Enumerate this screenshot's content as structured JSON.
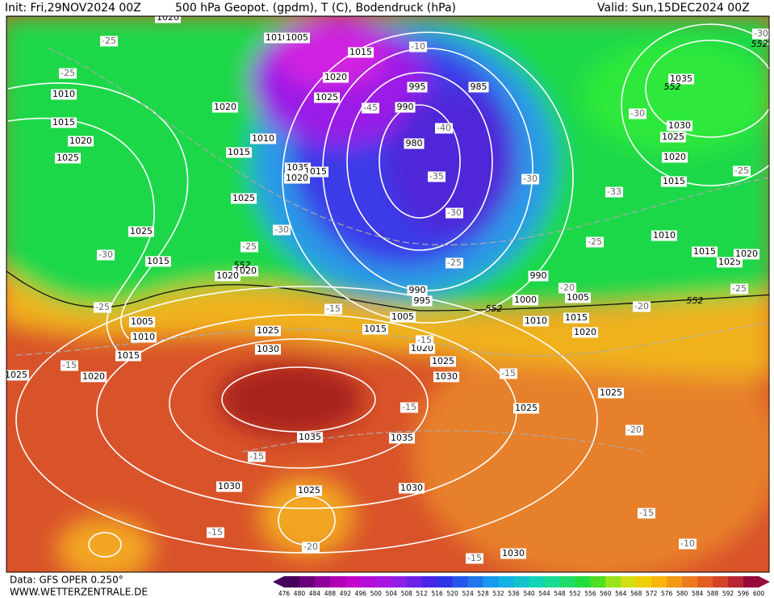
{
  "header": {
    "init": "Init: Fri,29NOV2024 00Z",
    "title": "500 hPa Geopot. (gpdm), T (C), Bodendruck (hPa)",
    "valid": "Valid: Sun,15DEC2024 00Z"
  },
  "footer": {
    "source": "Data: GFS OPER 0.250°",
    "site": "WWW.WETTERZENTRALE.DE"
  },
  "colorbar": {
    "labels": [
      "476",
      "480",
      "484",
      "488",
      "492",
      "496",
      "500",
      "504",
      "508",
      "512",
      "516",
      "520",
      "524",
      "528",
      "532",
      "536",
      "540",
      "544",
      "548",
      "552",
      "556",
      "560",
      "564",
      "568",
      "572",
      "576",
      "580",
      "584",
      "588",
      "592",
      "596",
      "600"
    ]
  },
  "map": {
    "pressure_labels": [
      "1020",
      "1010",
      "1005",
      "1015",
      "1020",
      "995",
      "985",
      "1025",
      "990",
      "1010",
      "1015",
      "1020",
      "1025",
      "1020",
      "1010",
      "980",
      "1015",
      "1035",
      "1015",
      "1020",
      "1025",
      "1025",
      "1015",
      "1020",
      "1020",
      "990",
      "995",
      "990",
      "1000",
      "1005",
      "1005",
      "1010",
      "1015",
      "1015",
      "1025",
      "1020",
      "1005",
      "1010",
      "1030",
      "1015",
      "1020",
      "1025",
      "1030",
      "1020",
      "1025",
      "1025",
      "1025",
      "1035",
      "1035",
      "1030",
      "1025",
      "1030",
      "1030",
      "1035",
      "1030",
      "1025",
      "1020",
      "1015",
      "1010",
      "1015",
      "1025",
      "1020"
    ],
    "temperature_labels": [
      "-25",
      "-25",
      "-10",
      "-45",
      "-40",
      "-35",
      "-30",
      "-30",
      "-33",
      "-25",
      "-30",
      "-30",
      "-25",
      "-25",
      "-20",
      "-25",
      "-15",
      "-15",
      "-15",
      "-15",
      "-15",
      "-20",
      "-15",
      "-15",
      "-20",
      "-15",
      "-15",
      "-10",
      "-30",
      "-30",
      "-25",
      "-20",
      "-25"
    ],
    "geopotential_labels": [
      "552",
      "552",
      "552",
      "552",
      "552"
    ]
  }
}
